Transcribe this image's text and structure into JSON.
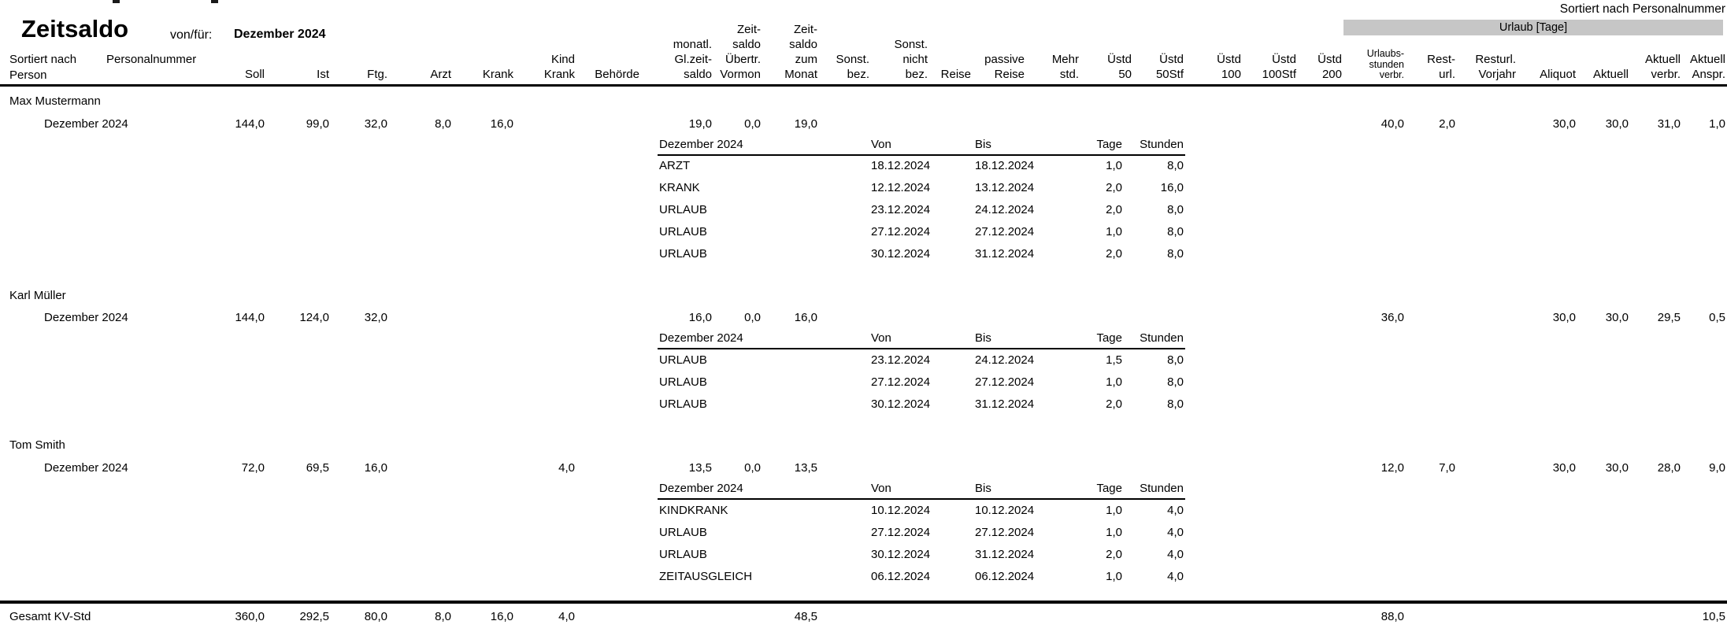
{
  "report": {
    "title": "Zeitsaldo",
    "von_fuer_label": "von/für:",
    "period": "Dezember 2024",
    "sort_note": "Sortiert nach Personalnummer",
    "urlaub_band_label": "Urlaub [Tage]",
    "sortiert_nach_label": "Sortiert nach",
    "sortiert_nach_value": "Personalnummer",
    "person_column_label": "Person",
    "total_label": "Gesamt KV-Std"
  },
  "columns": [
    {
      "id": "soll",
      "lines": [
        "Soll"
      ]
    },
    {
      "id": "ist",
      "lines": [
        "Ist"
      ]
    },
    {
      "id": "ftg",
      "lines": [
        "Ftg."
      ]
    },
    {
      "id": "arzt",
      "lines": [
        "Arzt"
      ]
    },
    {
      "id": "krank",
      "lines": [
        "Krank"
      ]
    },
    {
      "id": "kindkrank",
      "lines": [
        "Kind",
        "Krank"
      ]
    },
    {
      "id": "behoerde",
      "lines": [
        "Behörde"
      ]
    },
    {
      "id": "glzeit",
      "lines": [
        "monatl.",
        "Gl.zeit-",
        "saldo"
      ]
    },
    {
      "id": "uebertr",
      "lines": [
        "Zeit-",
        "saldo",
        "Übertr.",
        "Vormon"
      ]
    },
    {
      "id": "zummonat",
      "lines": [
        "Zeit-",
        "saldo",
        "zum",
        "Monat"
      ]
    },
    {
      "id": "sonstbez",
      "lines": [
        "Sonst.",
        "bez."
      ]
    },
    {
      "id": "sonstnicht",
      "lines": [
        "Sonst.",
        "nicht",
        "bez."
      ]
    },
    {
      "id": "reise",
      "lines": [
        "Reise"
      ]
    },
    {
      "id": "passivereise",
      "lines": [
        "passive",
        "Reise"
      ]
    },
    {
      "id": "mehrstd",
      "lines": [
        "Mehr",
        "std."
      ]
    },
    {
      "id": "uestd50",
      "lines": [
        "Üstd",
        "50"
      ]
    },
    {
      "id": "uestd50stf",
      "lines": [
        "Üstd",
        "50Stf"
      ]
    },
    {
      "id": "uestd100",
      "lines": [
        "Üstd",
        "100"
      ]
    },
    {
      "id": "uestd100stf",
      "lines": [
        "Üstd",
        "100Stf"
      ]
    },
    {
      "id": "uestd200",
      "lines": [
        "Üstd",
        "200"
      ]
    },
    {
      "id": "urlaubsstd",
      "lines": [
        "Urlaubs-",
        "stunden",
        "verbr."
      ]
    },
    {
      "id": "resturl",
      "lines": [
        "Rest-",
        "url."
      ]
    },
    {
      "id": "resturlvj",
      "lines": [
        "Resturl.",
        "Vorjahr"
      ]
    },
    {
      "id": "aliquot",
      "lines": [
        "Aliquot"
      ]
    },
    {
      "id": "aktuell",
      "lines": [
        "Aktuell"
      ]
    },
    {
      "id": "aktverbr",
      "lines": [
        "Aktuell",
        "verbr."
      ]
    },
    {
      "id": "aktanspr",
      "lines": [
        "Aktuell",
        "Anspr."
      ]
    }
  ],
  "subtable_headers": {
    "von": "Von",
    "bis": "Bis",
    "tage": "Tage",
    "stunden": "Stunden"
  },
  "persons": [
    {
      "name": "Max Mustermann",
      "month": "Dezember 2024",
      "values": {
        "soll": "144,0",
        "ist": "99,0",
        "ftg": "32,0",
        "arzt": "8,0",
        "krank": "16,0",
        "glzeit": "19,0",
        "uebertr": "0,0",
        "zummonat": "19,0",
        "urlaubsstd": "40,0",
        "resturl": "2,0",
        "aliquot": "30,0",
        "aktuell": "30,0",
        "aktverbr": "31,0",
        "aktanspr": "1,0"
      },
      "details_month": "Dezember 2024",
      "details": [
        {
          "type": "ARZT",
          "von": "18.12.2024",
          "bis": "18.12.2024",
          "tage": "1,0",
          "stunden": "8,0"
        },
        {
          "type": "KRANK",
          "von": "12.12.2024",
          "bis": "13.12.2024",
          "tage": "2,0",
          "stunden": "16,0"
        },
        {
          "type": "URLAUB",
          "von": "23.12.2024",
          "bis": "24.12.2024",
          "tage": "2,0",
          "stunden": "8,0"
        },
        {
          "type": "URLAUB",
          "von": "27.12.2024",
          "bis": "27.12.2024",
          "tage": "1,0",
          "stunden": "8,0"
        },
        {
          "type": "URLAUB",
          "von": "30.12.2024",
          "bis": "31.12.2024",
          "tage": "2,0",
          "stunden": "8,0"
        }
      ]
    },
    {
      "name": "Karl Müller",
      "month": "Dezember 2024",
      "values": {
        "soll": "144,0",
        "ist": "124,0",
        "ftg": "32,0",
        "glzeit": "16,0",
        "uebertr": "0,0",
        "zummonat": "16,0",
        "urlaubsstd": "36,0",
        "aliquot": "30,0",
        "aktuell": "30,0",
        "aktverbr": "29,5",
        "aktanspr": "0,5"
      },
      "details_month": "Dezember 2024",
      "details": [
        {
          "type": "URLAUB",
          "von": "23.12.2024",
          "bis": "24.12.2024",
          "tage": "1,5",
          "stunden": "8,0"
        },
        {
          "type": "URLAUB",
          "von": "27.12.2024",
          "bis": "27.12.2024",
          "tage": "1,0",
          "stunden": "8,0"
        },
        {
          "type": "URLAUB",
          "von": "30.12.2024",
          "bis": "31.12.2024",
          "tage": "2,0",
          "stunden": "8,0"
        }
      ]
    },
    {
      "name": "Tom Smith",
      "month": "Dezember 2024",
      "values": {
        "soll": "72,0",
        "ist": "69,5",
        "ftg": "16,0",
        "kindkrank": "4,0",
        "glzeit": "13,5",
        "uebertr": "0,0",
        "zummonat": "13,5",
        "urlaubsstd": "12,0",
        "resturl": "7,0",
        "aliquot": "30,0",
        "aktuell": "30,0",
        "aktverbr": "28,0",
        "aktanspr": "9,0"
      },
      "details_month": "Dezember 2024",
      "details": [
        {
          "type": "KINDKRANK",
          "von": "10.12.2024",
          "bis": "10.12.2024",
          "tage": "1,0",
          "stunden": "4,0"
        },
        {
          "type": "URLAUB",
          "von": "27.12.2024",
          "bis": "27.12.2024",
          "tage": "1,0",
          "stunden": "4,0"
        },
        {
          "type": "URLAUB",
          "von": "30.12.2024",
          "bis": "31.12.2024",
          "tage": "2,0",
          "stunden": "4,0"
        },
        {
          "type": "ZEITAUSGLEICH",
          "von": "06.12.2024",
          "bis": "06.12.2024",
          "tage": "1,0",
          "stunden": "4,0"
        }
      ]
    }
  ],
  "total_values": {
    "soll": "360,0",
    "ist": "292,5",
    "ftg": "80,0",
    "arzt": "8,0",
    "krank": "16,0",
    "kindkrank": "4,0",
    "zummonat": "48,5",
    "urlaubsstd": "88,0",
    "aktanspr": "10,5"
  }
}
